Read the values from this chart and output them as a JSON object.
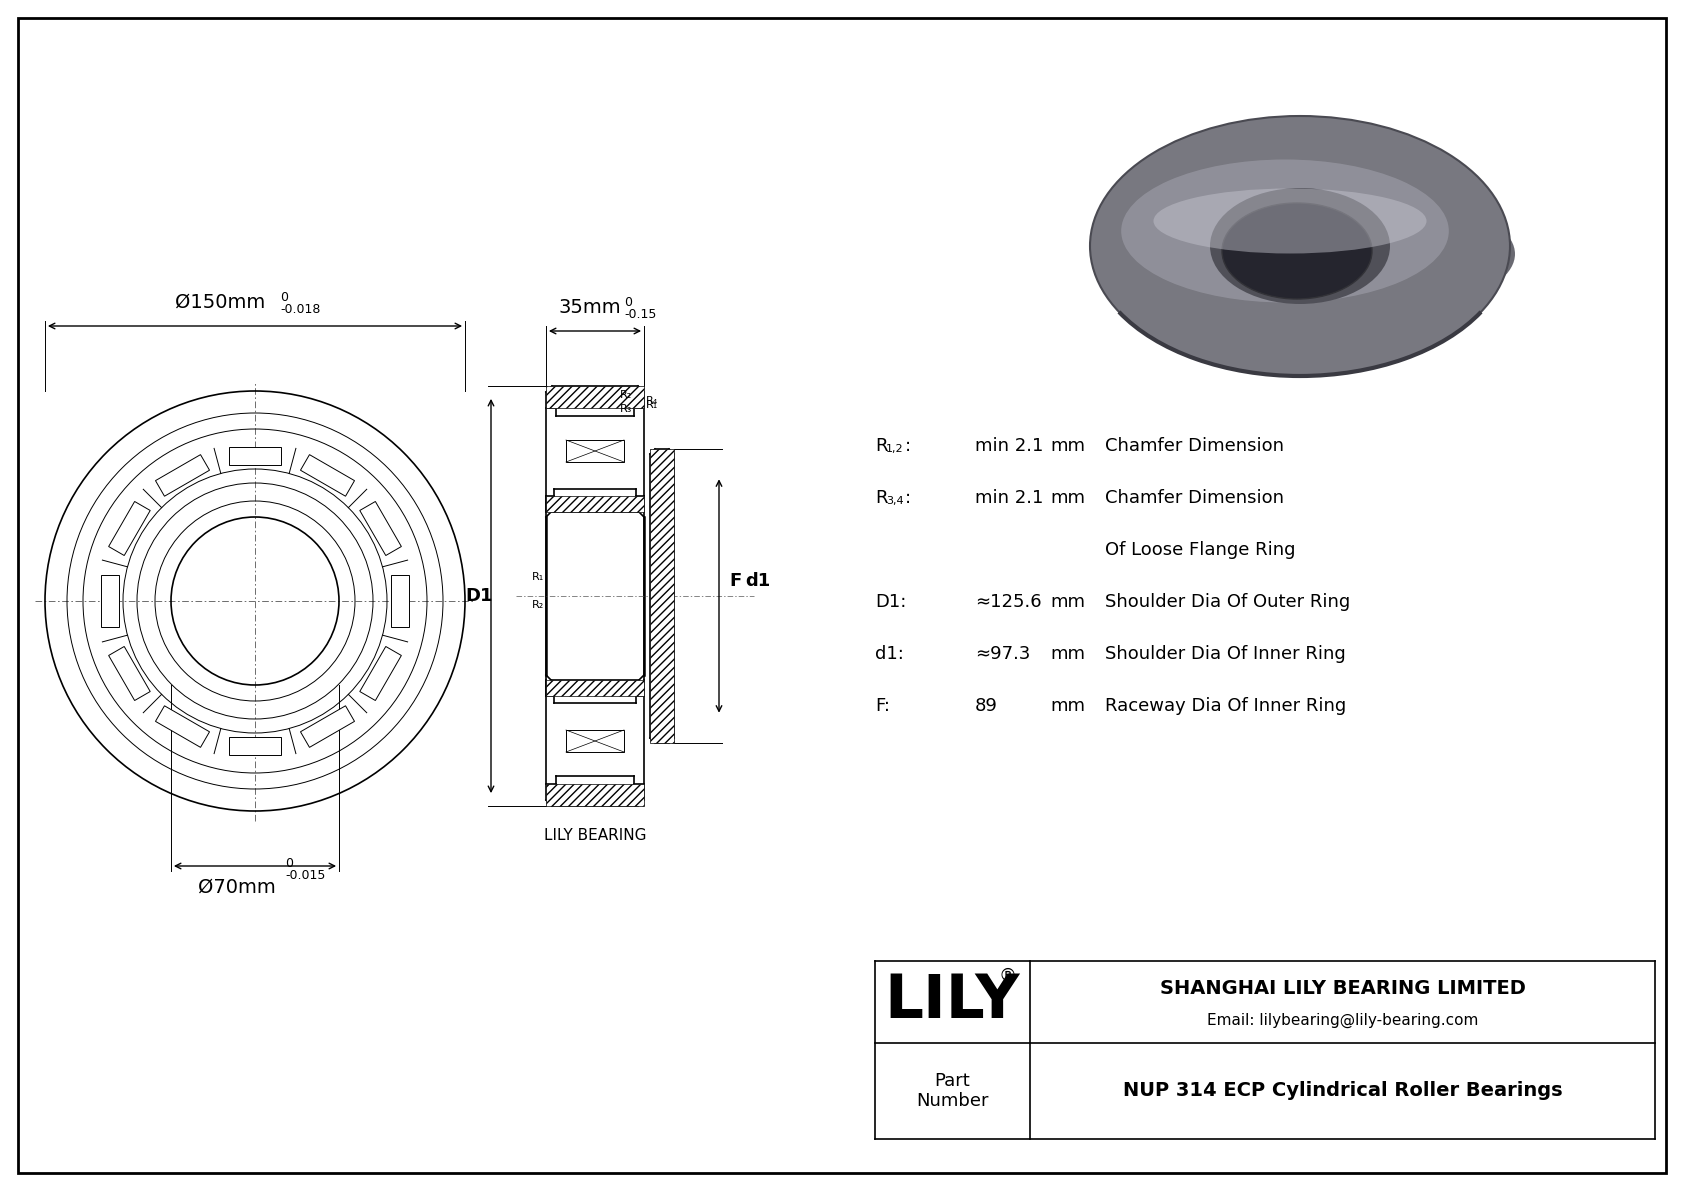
{
  "bg_color": "#ffffff",
  "line_color": "#000000",
  "title": "NUP 314 ECP Cylindrical Roller Bearings",
  "company": "SHANGHAI LILY BEARING LIMITED",
  "email": "Email: lilybearing@lily-bearing.com",
  "lily_text": "LILY",
  "part_label": "Part\nNumber",
  "dim_outer": "Ø150mm",
  "dim_outer_tol": "-0.018",
  "dim_outer_zero": "0",
  "dim_inner": "Ø70mm",
  "dim_inner_tol": "-0.015",
  "dim_inner_zero": "0",
  "dim_width": "35mm",
  "dim_width_tol": "-0.15",
  "dim_width_zero": "0",
  "lily_bearing_label": "LILY BEARING",
  "params": [
    {
      "label": "R1,2:",
      "value": "min 2.1",
      "unit": "mm",
      "desc": "Chamfer Dimension",
      "sub": "1,2"
    },
    {
      "label": "R3,4:",
      "value": "min 2.1",
      "unit": "mm",
      "desc": "Chamfer Dimension",
      "sub": "3,4"
    },
    {
      "label": "",
      "value": "",
      "unit": "",
      "desc": "Of Loose Flange Ring",
      "sub": ""
    },
    {
      "label": "D1:",
      "value": "≈125.6",
      "unit": "mm",
      "desc": "Shoulder Dia Of Outer Ring",
      "sub": ""
    },
    {
      "label": "d1:",
      "value": "≈97.3",
      "unit": "mm",
      "desc": "Shoulder Dia Of Inner Ring",
      "sub": ""
    },
    {
      "label": "F:",
      "value": "89",
      "unit": "mm",
      "desc": "Raceway Dia Of Inner Ring",
      "sub": ""
    }
  ]
}
